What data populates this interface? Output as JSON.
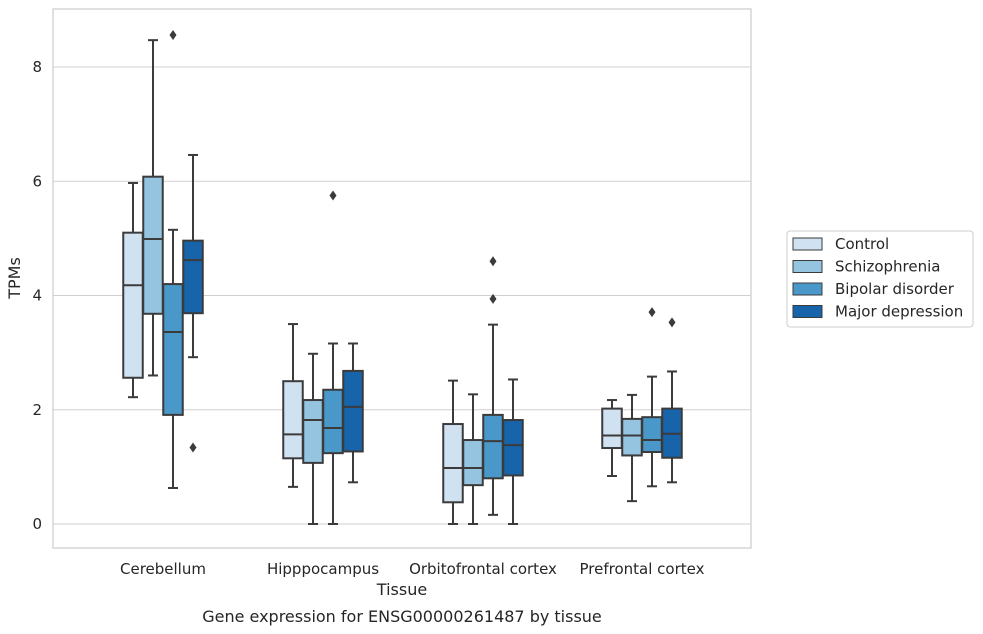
{
  "chart_data": {
    "type": "box",
    "title": "",
    "caption": "Gene expression for ENSG00000261487 by tissue",
    "xlabel": "Tissue",
    "ylabel": "TPMs",
    "ylim": [
      -0.4,
      9.0
    ],
    "yticks": [
      0,
      2,
      4,
      6,
      8
    ],
    "grid": "horizontal",
    "legend_position": "right",
    "categories": [
      "Cerebellum",
      "Hipppocampus",
      "Orbitofrontal cortex",
      "Prefrontal cortex"
    ],
    "colors": {
      "Control": "#d0e1f2",
      "Schizophrenia": "#94c4df",
      "Bipolar disorder": "#4a98c9",
      "Major depression": "#1764ab",
      "line": "#3b3b3b",
      "grid": "#d0d0d0",
      "frame": "#cccccc"
    },
    "series": [
      {
        "name": "Control",
        "boxes": [
          {
            "whisker_low": 2.22,
            "q1": 2.56,
            "median": 4.18,
            "q3": 5.1,
            "whisker_high": 5.97,
            "outliers": []
          },
          {
            "whisker_low": 0.65,
            "q1": 1.15,
            "median": 1.57,
            "q3": 2.5,
            "whisker_high": 3.5,
            "outliers": []
          },
          {
            "whisker_low": 0.0,
            "q1": 0.38,
            "median": 0.98,
            "q3": 1.75,
            "whisker_high": 2.51,
            "outliers": []
          },
          {
            "whisker_low": 0.84,
            "q1": 1.33,
            "median": 1.55,
            "q3": 2.02,
            "whisker_high": 2.17,
            "outliers": []
          }
        ]
      },
      {
        "name": "Schizophrenia",
        "boxes": [
          {
            "whisker_low": 2.6,
            "q1": 3.68,
            "median": 4.99,
            "q3": 6.08,
            "whisker_high": 8.47,
            "outliers": []
          },
          {
            "whisker_low": 0.0,
            "q1": 1.07,
            "median": 1.82,
            "q3": 2.17,
            "whisker_high": 2.98,
            "outliers": []
          },
          {
            "whisker_low": 0.0,
            "q1": 0.68,
            "median": 0.98,
            "q3": 1.47,
            "whisker_high": 2.27,
            "outliers": []
          },
          {
            "whisker_low": 0.4,
            "q1": 1.2,
            "median": 1.55,
            "q3": 1.84,
            "whisker_high": 2.26,
            "outliers": []
          }
        ]
      },
      {
        "name": "Bipolar disorder",
        "boxes": [
          {
            "whisker_low": 0.63,
            "q1": 1.91,
            "median": 3.36,
            "q3": 4.2,
            "whisker_high": 5.15,
            "outliers": [
              8.56
            ]
          },
          {
            "whisker_low": 0.0,
            "q1": 1.24,
            "median": 1.68,
            "q3": 2.35,
            "whisker_high": 3.16,
            "outliers": [
              5.75
            ]
          },
          {
            "whisker_low": 0.16,
            "q1": 0.8,
            "median": 1.45,
            "q3": 1.91,
            "whisker_high": 3.49,
            "outliers": [
              4.6,
              3.94
            ]
          },
          {
            "whisker_low": 0.66,
            "q1": 1.26,
            "median": 1.47,
            "q3": 1.87,
            "whisker_high": 2.58,
            "outliers": [
              3.71
            ]
          }
        ]
      },
      {
        "name": "Major depression",
        "boxes": [
          {
            "whisker_low": 2.92,
            "q1": 3.69,
            "median": 4.62,
            "q3": 4.96,
            "whisker_high": 6.46,
            "outliers": [
              1.34
            ]
          },
          {
            "whisker_low": 0.73,
            "q1": 1.27,
            "median": 2.05,
            "q3": 2.68,
            "whisker_high": 3.16,
            "outliers": []
          },
          {
            "whisker_low": 0.0,
            "q1": 0.85,
            "median": 1.38,
            "q3": 1.82,
            "whisker_high": 2.53,
            "outliers": []
          },
          {
            "whisker_low": 0.73,
            "q1": 1.16,
            "median": 1.58,
            "q3": 2.02,
            "whisker_high": 2.67,
            "outliers": [
              3.53
            ]
          }
        ]
      }
    ]
  }
}
